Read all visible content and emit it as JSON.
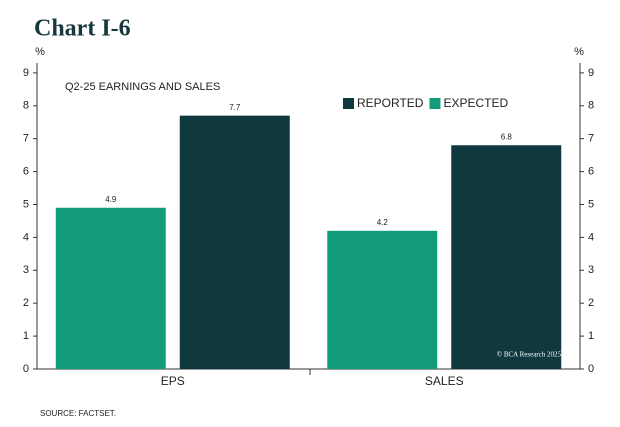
{
  "chart_data": {
    "type": "bar",
    "title": "Chart I-6",
    "subtitle": "Q2-25 EARNINGS AND SALES",
    "y_unit": "%",
    "y2_unit": "%",
    "categories": [
      "EPS",
      "SALES"
    ],
    "series": [
      {
        "name": "EXPECTED",
        "color": "#139c7b",
        "values": [
          4.9,
          4.2
        ]
      },
      {
        "name": "REPORTED",
        "color": "#10393f",
        "values": [
          7.7,
          6.8
        ]
      }
    ],
    "ylim": [
      0,
      9.3
    ],
    "yticks": [
      0,
      1,
      2,
      3,
      4,
      5,
      6,
      7,
      8,
      9
    ],
    "y2lim": [
      0,
      9.3
    ],
    "y2ticks": [
      0,
      1,
      2,
      3,
      4,
      5,
      6,
      7,
      8,
      9
    ],
    "grid": false,
    "legend": "top-right",
    "source": "SOURCE: FACTSET.",
    "copyright": "© BCA Research 2025"
  }
}
